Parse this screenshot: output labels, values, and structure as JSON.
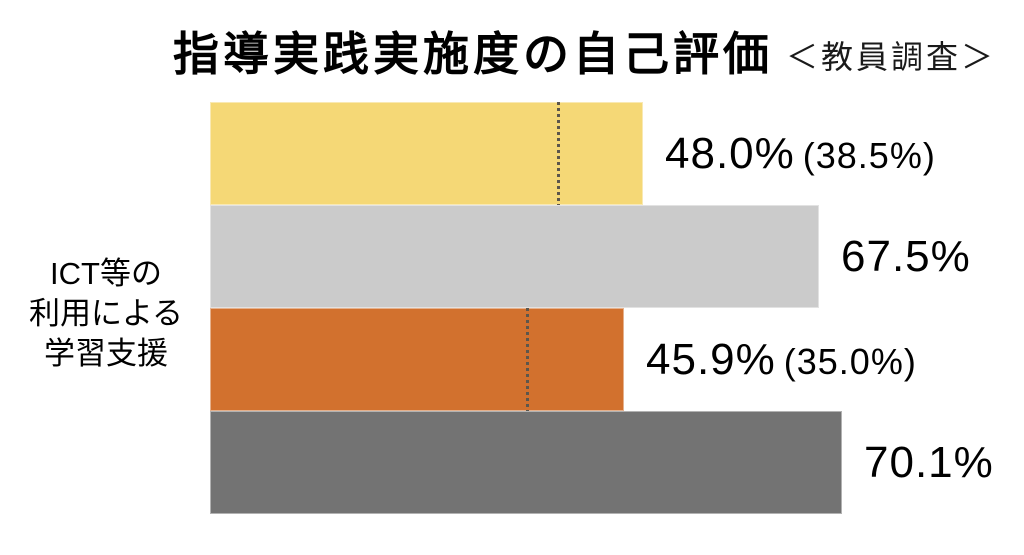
{
  "category_label": {
    "line1": "ICT等の",
    "line2": "利用による",
    "line3": "学習支援"
  },
  "chart_data": {
    "type": "bar",
    "orientation": "horizontal",
    "title": "指導実践実施度の自己評価",
    "annotation": "＜教員調査＞",
    "category": "ICT等の利用による学習支援",
    "xlim": [
      0,
      100
    ],
    "grid": false,
    "legend": "none",
    "bars": [
      {
        "value": 48.0,
        "reference": 38.5,
        "value_label": "48.0%",
        "reference_label": "(38.5%)",
        "color": "#F5D876"
      },
      {
        "value": 67.5,
        "reference": null,
        "value_label": "67.5%",
        "reference_label": "",
        "color": "#CBCBCB"
      },
      {
        "value": 45.9,
        "reference": 35.0,
        "value_label": "45.9%",
        "reference_label": "(35.0%)",
        "color": "#D2712E"
      },
      {
        "value": 70.1,
        "reference": null,
        "value_label": "70.1%",
        "reference_label": "",
        "color": "#737373"
      }
    ]
  }
}
